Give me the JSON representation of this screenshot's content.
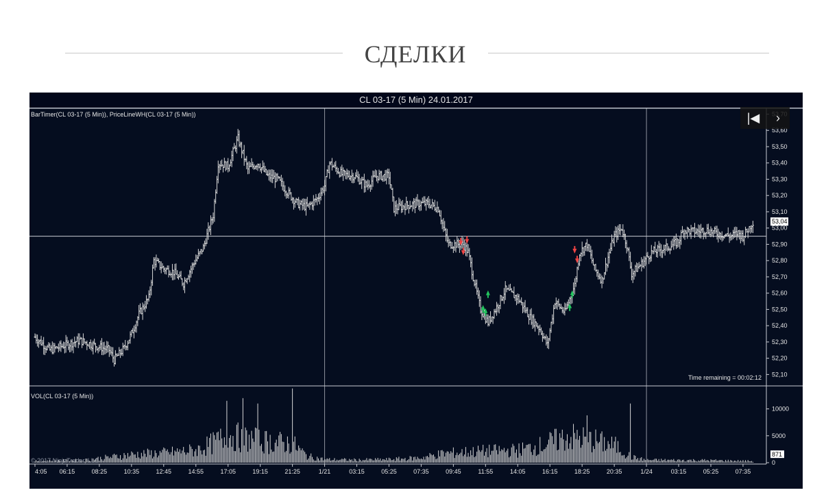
{
  "heading": {
    "title": "СДЕЛКИ"
  },
  "nav": {
    "first_glyph": "|◀",
    "next_glyph": "›",
    "next_icon": "chevron-right-icon",
    "first_icon": "skip-to-first-icon"
  },
  "colors": {
    "background": "#050d1f",
    "bars": "#d9d9d9",
    "grid": "#c9ccd3",
    "buy_marker": "#22c55e",
    "sell_marker": "#ef4444",
    "text": "#e6e6e6"
  },
  "chart_data": {
    "type": "ohlc",
    "title": "CL 03-17 (5 Min)  24.01.2017",
    "indicator_label": "BarTimer(CL 03-17 (5 Min)), PriceLineWH(CL 03-17 (5 Min))",
    "last_price_label": "53,04",
    "price_line": 52.95,
    "time_remaining_label": "Time remaining = 00:02:12",
    "copyright": "© 2017 NinjaTrader, LLC",
    "ylim": [
      52.03,
      53.74
    ],
    "y_ticks": [
      "52,10",
      "52,20",
      "52,30",
      "52,40",
      "52,50",
      "52,60",
      "52,70",
      "52,80",
      "52,90",
      "53,00",
      "53,10",
      "53,20",
      "53,30",
      "53,40",
      "53,50",
      "53,60",
      "53,70"
    ],
    "x_ticks": [
      "4:05",
      "06:15",
      "08:25",
      "10:35",
      "12:45",
      "14:55",
      "17:05",
      "19:15",
      "21:25",
      "1/21",
      "03:15",
      "05:25",
      "07:35",
      "09:45",
      "11:55",
      "14:05",
      "16:15",
      "18:25",
      "20:35",
      "1/24",
      "03:15",
      "05:25",
      "07:35"
    ],
    "x_tick_bar_index": [
      0,
      26,
      52,
      78,
      104,
      130,
      156,
      182,
      208,
      234,
      260,
      286,
      312,
      338,
      364,
      390,
      416,
      442,
      468,
      494,
      520,
      546,
      572
    ],
    "date_separators_bar_index": [
      234,
      494
    ],
    "price_path": [
      [
        0,
        52.33
      ],
      [
        12,
        52.25
      ],
      [
        24,
        52.28
      ],
      [
        36,
        52.31
      ],
      [
        48,
        52.28
      ],
      [
        60,
        52.25
      ],
      [
        64,
        52.19
      ],
      [
        72,
        52.26
      ],
      [
        78,
        52.35
      ],
      [
        84,
        52.47
      ],
      [
        92,
        52.57
      ],
      [
        96,
        52.8
      ],
      [
        104,
        52.75
      ],
      [
        112,
        52.73
      ],
      [
        120,
        52.66
      ],
      [
        128,
        52.78
      ],
      [
        136,
        52.88
      ],
      [
        144,
        53.08
      ],
      [
        148,
        53.4
      ],
      [
        156,
        53.38
      ],
      [
        164,
        53.55
      ],
      [
        172,
        53.36
      ],
      [
        180,
        53.4
      ],
      [
        188,
        53.32
      ],
      [
        196,
        53.3
      ],
      [
        204,
        53.22
      ],
      [
        212,
        53.15
      ],
      [
        220,
        53.13
      ],
      [
        228,
        53.18
      ],
      [
        234,
        53.26
      ],
      [
        238,
        53.4
      ],
      [
        248,
        53.33
      ],
      [
        258,
        53.32
      ],
      [
        268,
        53.26
      ],
      [
        276,
        53.32
      ],
      [
        286,
        53.32
      ],
      [
        290,
        53.12
      ],
      [
        300,
        53.14
      ],
      [
        310,
        53.15
      ],
      [
        318,
        53.15
      ],
      [
        326,
        53.12
      ],
      [
        330,
        53.0
      ],
      [
        334,
        52.9
      ],
      [
        340,
        52.9
      ],
      [
        346,
        52.9
      ],
      [
        350,
        52.85
      ],
      [
        354,
        52.7
      ],
      [
        360,
        52.5
      ],
      [
        366,
        52.42
      ],
      [
        372,
        52.5
      ],
      [
        380,
        52.62
      ],
      [
        390,
        52.57
      ],
      [
        400,
        52.45
      ],
      [
        408,
        52.38
      ],
      [
        414,
        52.28
      ],
      [
        420,
        52.55
      ],
      [
        428,
        52.48
      ],
      [
        436,
        52.65
      ],
      [
        440,
        52.85
      ],
      [
        446,
        52.9
      ],
      [
        452,
        52.75
      ],
      [
        458,
        52.68
      ],
      [
        464,
        52.85
      ],
      [
        468,
        52.95
      ],
      [
        474,
        53.0
      ],
      [
        478,
        52.9
      ],
      [
        482,
        52.72
      ],
      [
        490,
        52.78
      ],
      [
        498,
        52.85
      ],
      [
        506,
        52.87
      ],
      [
        514,
        52.89
      ],
      [
        520,
        52.92
      ],
      [
        524,
        52.99
      ],
      [
        530,
        52.98
      ],
      [
        536,
        52.98
      ],
      [
        542,
        52.99
      ],
      [
        550,
        52.97
      ],
      [
        556,
        52.96
      ],
      [
        562,
        52.95
      ],
      [
        568,
        52.97
      ],
      [
        572,
        52.95
      ],
      [
        576,
        52.99
      ],
      [
        580,
        53.04
      ]
    ],
    "markers": [
      {
        "bar": 344,
        "price": 52.91,
        "type": "sell"
      },
      {
        "bar": 346,
        "price": 52.85,
        "type": "sell"
      },
      {
        "bar": 349,
        "price": 52.92,
        "type": "sell"
      },
      {
        "bar": 362,
        "price": 52.51,
        "type": "buy"
      },
      {
        "bar": 364,
        "price": 52.49,
        "type": "buy"
      },
      {
        "bar": 366,
        "price": 52.6,
        "type": "buy"
      },
      {
        "bar": 432,
        "price": 52.52,
        "type": "buy"
      },
      {
        "bar": 434,
        "price": 52.6,
        "type": "buy"
      },
      {
        "bar": 436,
        "price": 52.86,
        "type": "sell"
      },
      {
        "bar": 438,
        "price": 52.8,
        "type": "sell"
      }
    ],
    "volume": {
      "label": "VOL(CL 03-17 (5 Min))",
      "ylim": [
        0,
        13000
      ],
      "y_ticks": [
        "0",
        "5000",
        "10000"
      ],
      "last_label": "871",
      "profile": [
        [
          0,
          300
        ],
        [
          40,
          500
        ],
        [
          60,
          1000
        ],
        [
          78,
          1500
        ],
        [
          104,
          1800
        ],
        [
          130,
          2300
        ],
        [
          140,
          3200
        ],
        [
          156,
          5000
        ],
        [
          182,
          4000
        ],
        [
          208,
          3500
        ],
        [
          220,
          1200
        ],
        [
          234,
          600
        ],
        [
          260,
          500
        ],
        [
          286,
          600
        ],
        [
          312,
          900
        ],
        [
          330,
          1700
        ],
        [
          360,
          2100
        ],
        [
          390,
          2300
        ],
        [
          410,
          3200
        ],
        [
          430,
          4800
        ],
        [
          450,
          4200
        ],
        [
          470,
          3000
        ],
        [
          482,
          1000
        ],
        [
          494,
          500
        ],
        [
          540,
          450
        ],
        [
          580,
          300
        ]
      ],
      "spikes": [
        {
          "bar": 155,
          "value": 11500
        },
        {
          "bar": 168,
          "value": 12000
        },
        {
          "bar": 180,
          "value": 11000
        },
        {
          "bar": 208,
          "value": 13800
        },
        {
          "bar": 446,
          "value": 8800
        },
        {
          "bar": 481,
          "value": 11000
        }
      ]
    }
  }
}
